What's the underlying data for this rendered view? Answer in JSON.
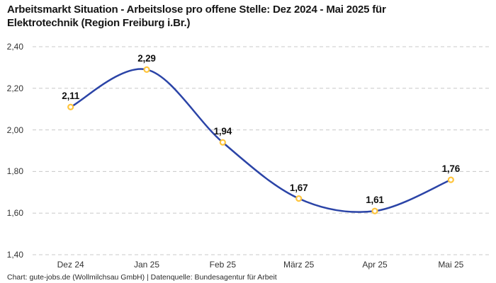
{
  "title_line1": "Arbeitsmarkt Situation - Arbeitslose pro offene Stelle: Dez 2024 - Mai 2025 für",
  "title_line2": "Elektrotechnik (Region Freiburg i.Br.)",
  "footer": "Chart: gute-jobs.de (Wollmilchsau GmbH) | Datenquelle: Bundesagentur für Arbeit",
  "colors": {
    "line": "#2B44A7",
    "marker": "#FFC53D",
    "marker_fill": "#ffffff",
    "grid": "#c8c8c8",
    "data_label": "#111111",
    "tick_label": "#333333"
  },
  "chart_data": {
    "type": "line",
    "title": "Arbeitsmarkt Situation - Arbeitslose pro offene Stelle: Dez 2024 - Mai 2025 für Elektrotechnik (Region Freiburg i.Br.)",
    "categories": [
      "Dez 24",
      "Jan 25",
      "Feb 25",
      "März 25",
      "Apr 25",
      "Mai 25"
    ],
    "values": [
      2.11,
      2.29,
      1.94,
      1.67,
      1.61,
      1.76
    ],
    "value_labels": [
      "2,11",
      "2,29",
      "1,94",
      "1,67",
      "1,61",
      "1,76"
    ],
    "y_ticks": [
      {
        "v": 2.4,
        "label": "2,40"
      },
      {
        "v": 2.2,
        "label": "2,20"
      },
      {
        "v": 2.0,
        "label": "2,00"
      },
      {
        "v": 1.8,
        "label": "1,80"
      },
      {
        "v": 1.6,
        "label": "1,60"
      },
      {
        "v": 1.4,
        "label": "1,40"
      }
    ],
    "ylim": [
      1.4,
      2.4
    ],
    "xlabel": "",
    "ylabel": "",
    "legend": "none",
    "grid": "horizontal-dashed",
    "curve": "smooth"
  }
}
